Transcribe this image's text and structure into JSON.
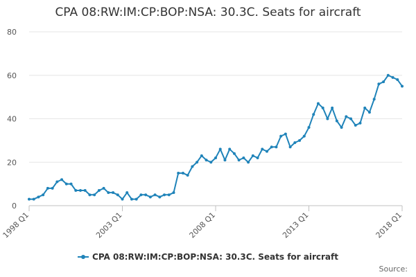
{
  "colors": {
    "series": "#1f83b9",
    "grid": "#e6e6e6",
    "axis": "#c0c0c0"
  },
  "credits": "Source:",
  "chart_data": {
    "type": "line",
    "title": "CPA 08:RW:IM:CP:BOP:NSA: 30.3C. Seats for aircraft",
    "xlabel": "",
    "ylabel": "",
    "ylim": [
      0,
      80
    ],
    "yticks": [
      "0",
      "20",
      "40",
      "60",
      "80"
    ],
    "xticks": [
      "1998 Q1",
      "2003 Q1",
      "2008 Q1",
      "2013 Q1",
      "2018 Q1"
    ],
    "grid": true,
    "legend_position": "bottom-center",
    "x": [
      "1998 Q1",
      "1998 Q2",
      "1998 Q3",
      "1998 Q4",
      "1999 Q1",
      "1999 Q2",
      "1999 Q3",
      "1999 Q4",
      "2000 Q1",
      "2000 Q2",
      "2000 Q3",
      "2000 Q4",
      "2001 Q1",
      "2001 Q2",
      "2001 Q3",
      "2001 Q4",
      "2002 Q1",
      "2002 Q2",
      "2002 Q3",
      "2002 Q4",
      "2003 Q1",
      "2003 Q2",
      "2003 Q3",
      "2003 Q4",
      "2004 Q1",
      "2004 Q2",
      "2004 Q3",
      "2004 Q4",
      "2005 Q1",
      "2005 Q2",
      "2005 Q3",
      "2005 Q4",
      "2006 Q1",
      "2006 Q2",
      "2006 Q3",
      "2006 Q4",
      "2007 Q1",
      "2007 Q2",
      "2007 Q3",
      "2007 Q4",
      "2008 Q1",
      "2008 Q2",
      "2008 Q3",
      "2008 Q4",
      "2009 Q1",
      "2009 Q2",
      "2009 Q3",
      "2009 Q4",
      "2010 Q1",
      "2010 Q2",
      "2010 Q3",
      "2010 Q4",
      "2011 Q1",
      "2011 Q2",
      "2011 Q3",
      "2011 Q4",
      "2012 Q1",
      "2012 Q2",
      "2012 Q3",
      "2012 Q4",
      "2013 Q1",
      "2013 Q2",
      "2013 Q3",
      "2013 Q4",
      "2014 Q1",
      "2014 Q2",
      "2014 Q3",
      "2014 Q4",
      "2015 Q1",
      "2015 Q2",
      "2015 Q3",
      "2015 Q4",
      "2016 Q1",
      "2016 Q2",
      "2016 Q3",
      "2016 Q4",
      "2017 Q1",
      "2017 Q2",
      "2017 Q3",
      "2017 Q4",
      "2018 Q1"
    ],
    "series": [
      {
        "name": "CPA 08:RW:IM:CP:BOP:NSA: 30.3C. Seats for aircraft",
        "values": [
          3,
          3,
          4,
          5,
          8,
          8,
          11,
          12,
          10,
          10,
          7,
          7,
          7,
          5,
          5,
          7,
          8,
          6,
          6,
          5,
          3,
          6,
          3,
          3,
          5,
          5,
          4,
          5,
          4,
          5,
          5,
          6,
          15,
          15,
          14,
          18,
          20,
          23,
          21,
          20,
          22,
          26,
          21,
          26,
          24,
          21,
          22,
          20,
          23,
          22,
          26,
          25,
          27,
          27,
          32,
          33,
          27,
          29,
          30,
          32,
          36,
          42,
          47,
          45,
          40,
          45,
          39,
          36,
          41,
          40,
          37,
          38,
          45,
          43,
          49,
          56,
          57,
          60,
          59,
          58,
          55
        ]
      }
    ]
  }
}
